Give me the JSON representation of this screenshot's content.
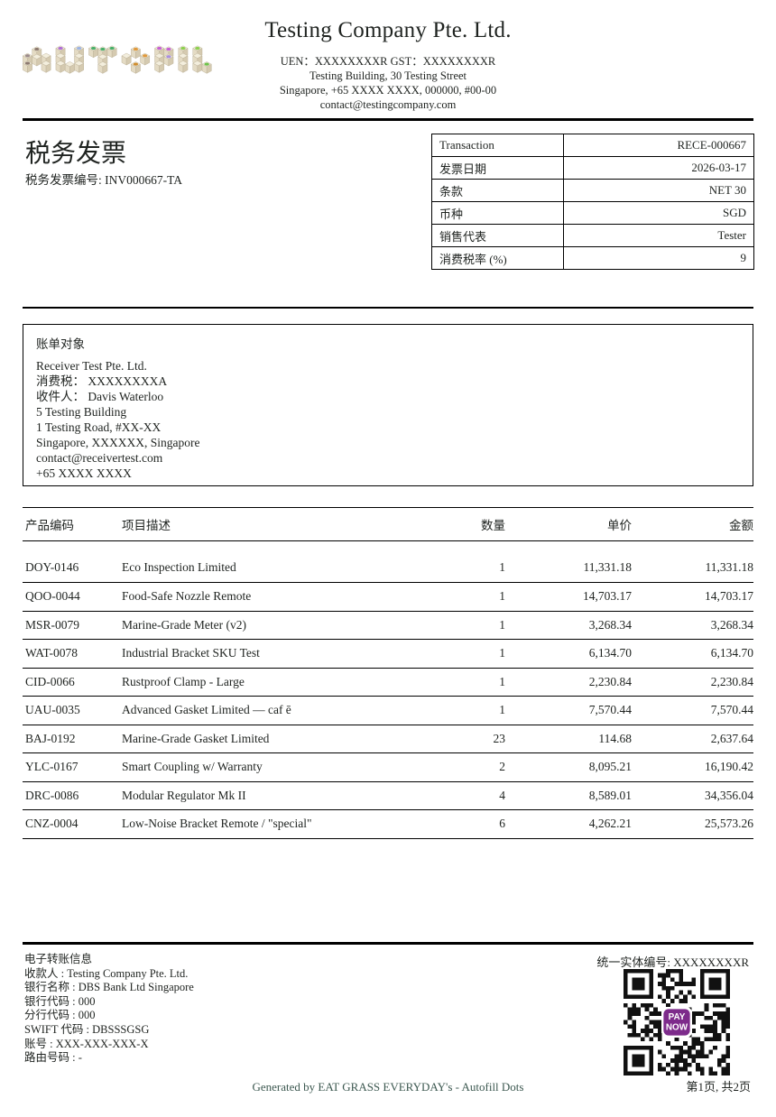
{
  "header": {
    "logo_name": "autofill-cubes-logo",
    "company_name": "Testing Company Pte. Ltd.",
    "registration_line": "UEN：XXXXXXXXR GST：XXXXXXXXR",
    "address_line1": "Testing Building, 30 Testing Street",
    "address_line2": "Singapore, +65 XXXX XXXX, 000000, #00-00",
    "email": "contact@testingcompany.com"
  },
  "invoice": {
    "title": "税务发票",
    "number_line": "税务发票编号: INV000667-TA"
  },
  "info_table": {
    "rows": [
      {
        "label": "Transaction",
        "value": "RECE-000667"
      },
      {
        "label": "发票日期",
        "value": "2026-03-17"
      },
      {
        "label": "条款",
        "value": "NET 30"
      },
      {
        "label": "币种",
        "value": "SGD"
      },
      {
        "label": "销售代表",
        "value": "Tester"
      },
      {
        "label": "消费税率 (%)",
        "value": "9"
      }
    ]
  },
  "billing": {
    "title": "账单对象",
    "lines": [
      "Receiver Test Pte. Ltd.",
      "消费税： XXXXXXXXA",
      "收件人： Davis Waterloo",
      "5 Testing Building",
      "1 Testing Road, #XX-XX",
      "Singapore, XXXXXX, Singapore",
      "contact@receivertest.com",
      "+65 XXXX XXXX"
    ]
  },
  "items_table": {
    "headers": {
      "code": "产品编码",
      "description": "项目描述",
      "qty": "数量",
      "unit_price": "单价",
      "amount": "金额"
    },
    "rows": [
      {
        "code": "DOY-0146",
        "description": "Eco Inspection Limited",
        "qty": "1",
        "unit_price": "11,331.18",
        "amount": "11,331.18"
      },
      {
        "code": "QOO-0044",
        "description": "Food-Safe Nozzle Remote",
        "qty": "1",
        "unit_price": "14,703.17",
        "amount": "14,703.17"
      },
      {
        "code": "MSR-0079",
        "description": "Marine-Grade Meter (v2)",
        "qty": "1",
        "unit_price": "3,268.34",
        "amount": "3,268.34"
      },
      {
        "code": "WAT-0078",
        "description": "Industrial Bracket SKU Test",
        "qty": "1",
        "unit_price": "6,134.70",
        "amount": "6,134.70"
      },
      {
        "code": "CID-0066",
        "description": "Rustproof Clamp - Large",
        "qty": "1",
        "unit_price": "2,230.84",
        "amount": "2,230.84"
      },
      {
        "code": "UAU-0035",
        "description": "Advanced Gasket Limited — caf ē",
        "qty": "1",
        "unit_price": "7,570.44",
        "amount": "7,570.44"
      },
      {
        "code": "BAJ-0192",
        "description": "Marine-Grade Gasket Limited",
        "qty": "23",
        "unit_price": "114.68",
        "amount": "2,637.64"
      },
      {
        "code": "YLC-0167",
        "description": "Smart Coupling w/ Warranty",
        "qty": "2",
        "unit_price": "8,095.21",
        "amount": "16,190.42"
      },
      {
        "code": "DRC-0086",
        "description": "Modular Regulator Mk II",
        "qty": "4",
        "unit_price": "8,589.01",
        "amount": "34,356.04"
      },
      {
        "code": "CNZ-0004",
        "description": "Low-Noise Bracket Remote / \"special\"",
        "qty": "6",
        "unit_price": "4,262.21",
        "amount": "25,573.26"
      }
    ]
  },
  "payment": {
    "title": "电子转账信息",
    "lines": [
      "收款人 : Testing Company Pte. Ltd.",
      "银行名称 : DBS Bank Ltd Singapore",
      "银行代码 : 000",
      "分行代码 : 000",
      "SWIFT 代码 : DBSSSGSG",
      "账号 : XXX-XXX-XXX-X",
      "路由号码 : -"
    ]
  },
  "footer": {
    "entity_number": "统一实体编号: XXXXXXXXR",
    "qr_name": "paynow-qr-code",
    "qr_center_line1": "PAY",
    "qr_center_line2": "NOW",
    "qr_brand_color": "#7d2b8b",
    "page_info": "第1页, 共2页",
    "generated_by": "Generated by EAT GRASS EVERYDAY's - Autofill Dots"
  }
}
